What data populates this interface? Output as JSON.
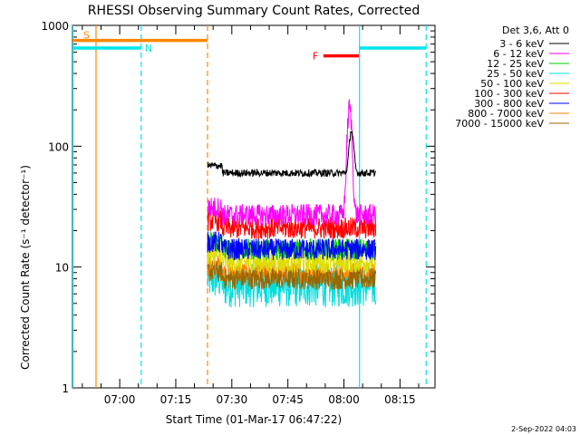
{
  "chart_data": {
    "type": "line",
    "title": "RHESSI Observing Summary Count Rates, Corrected",
    "xlabel": "Start Time (01-Mar-17 06:47:22)",
    "ylabel": "Corrected Count Rate (s⁻¹ detector⁻¹)",
    "yscale": "log",
    "ylim": [
      1,
      1000
    ],
    "xlim": [
      "06:47:22",
      "08:24:22"
    ],
    "x_ticks": [
      "07:00",
      "07:15",
      "07:30",
      "07:45",
      "08:00",
      "08:15"
    ],
    "y_ticks": [
      "1",
      "10",
      "100",
      "1000"
    ],
    "legend_header": "Det 3,6, Att 0",
    "legend_position": "right",
    "data_start": "07:23:30",
    "data_end": "08:08:30",
    "series": [
      {
        "name": "3 - 6 keV",
        "color": "#000000",
        "baseline": 60,
        "peak": 135,
        "peak_time": "08:02:00"
      },
      {
        "name": "6 - 12 keV",
        "color": "#ff00ff",
        "baseline": 27,
        "peak": 210,
        "peak_time": "08:01:30"
      },
      {
        "name": "12 - 25 keV",
        "color": "#00cc00",
        "baseline": 14,
        "peak": 14,
        "peak_time": "08:01:30"
      },
      {
        "name": "25 - 50 keV",
        "color": "#00dddd",
        "baseline": 7,
        "peak": 7,
        "peak_time": "08:01:30"
      },
      {
        "name": "50 - 100 keV",
        "color": "#dddd00",
        "baseline": 11,
        "peak": 11,
        "peak_time": "08:01:30"
      },
      {
        "name": "100 - 300 keV",
        "color": "#ff0000",
        "baseline": 21,
        "peak": 21,
        "peak_time": "08:01:30"
      },
      {
        "name": "300 - 800 keV",
        "color": "#0000ff",
        "baseline": 14,
        "peak": 14,
        "peak_time": "08:01:30"
      },
      {
        "name": "800 - 7000 keV",
        "color": "#ff8800",
        "baseline": 9,
        "peak": 9,
        "peak_time": "08:01:30"
      },
      {
        "name": "7000 - 15000 keV",
        "color": "#996600",
        "baseline": 8,
        "peak": 8,
        "peak_time": "08:01:30"
      }
    ],
    "bars": [
      {
        "label": "S",
        "color": "#ff8800",
        "start": "06:47:22",
        "end": "07:23:30",
        "level": 750
      },
      {
        "label": "N",
        "color": "#00e5ee",
        "start": "06:47:22",
        "end": "07:05:45",
        "level": 650
      },
      {
        "label": "",
        "color": "#00e5ee",
        "start": "08:04:10",
        "end": "08:22:00",
        "level": 650
      },
      {
        "label": "F",
        "color": "#ff0000",
        "start": "07:54:30",
        "end": "08:04:00",
        "level": 560
      }
    ],
    "vlines": [
      {
        "time": "06:47:30",
        "color": "#00e5ee",
        "style": "solid"
      },
      {
        "time": "06:53:40",
        "color": "#ff8800",
        "style": "solid"
      },
      {
        "time": "07:05:45",
        "color": "#00e5ee",
        "style": "dashed"
      },
      {
        "time": "07:23:30",
        "color": "#ff8800",
        "style": "dashed"
      },
      {
        "time": "08:04:10",
        "color": "#00e5ee",
        "style": "solid"
      },
      {
        "time": "08:22:00",
        "color": "#00e5ee",
        "style": "dashed"
      }
    ]
  },
  "footer": {
    "date": "2-Sep-2022 04:03"
  }
}
